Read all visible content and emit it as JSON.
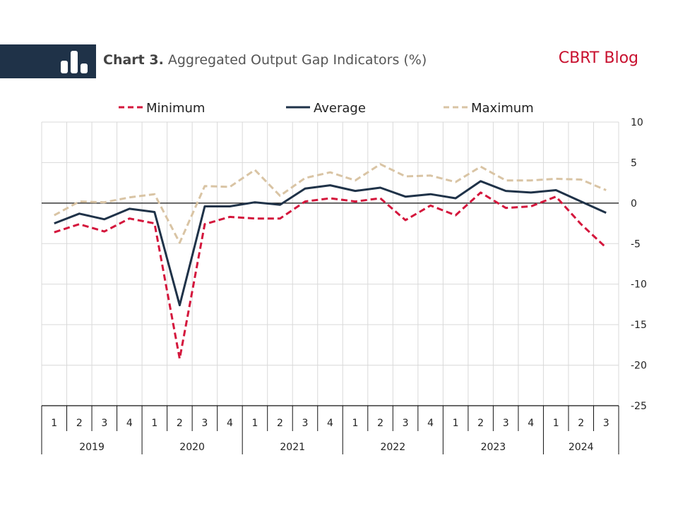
{
  "header": {
    "title_bold": "Chart 3.",
    "title_rest": "Aggregated Output Gap Indicators (%)",
    "brand": "CBRT Blog"
  },
  "colors": {
    "minimum": "#d4163c",
    "average": "#1f3248",
    "maximum": "#d9c4a4",
    "header_band": "#1f3248",
    "brand": "#c8102e"
  },
  "chart_data": {
    "type": "line",
    "title": "Chart 3. Aggregated Output Gap Indicators (%)",
    "xlabel": "",
    "ylabel": "",
    "ylim": [
      -25,
      10
    ],
    "yticks": [
      10,
      5,
      0,
      -5,
      -10,
      -15,
      -20,
      -25
    ],
    "y_axis_position": "right",
    "grid": true,
    "legend_position": "top",
    "quarters": [
      "1",
      "2",
      "3",
      "4",
      "1",
      "2",
      "3",
      "4",
      "1",
      "2",
      "3",
      "4",
      "1",
      "2",
      "3",
      "4",
      "1",
      "2",
      "3",
      "4",
      "1",
      "2",
      "3"
    ],
    "years": [
      {
        "label": "2019",
        "count": 4
      },
      {
        "label": "2020",
        "count": 4
      },
      {
        "label": "2021",
        "count": 4
      },
      {
        "label": "2022",
        "count": 4
      },
      {
        "label": "2023",
        "count": 4
      },
      {
        "label": "2024",
        "count": 3
      }
    ],
    "series": [
      {
        "name": "Minimum",
        "style": "dashed",
        "color": "#d4163c",
        "values": [
          -3.6,
          -2.6,
          -3.5,
          -1.9,
          -2.5,
          -19.2,
          -2.6,
          -1.7,
          -1.9,
          -1.9,
          0.2,
          0.6,
          0.2,
          0.6,
          -2.1,
          -0.3,
          -1.5,
          1.3,
          -0.6,
          -0.4,
          0.8,
          -2.6,
          -5.5
        ]
      },
      {
        "name": "Average",
        "style": "solid",
        "color": "#1f3248",
        "values": [
          -2.5,
          -1.3,
          -2.0,
          -0.7,
          -1.1,
          -12.6,
          -0.4,
          -0.4,
          0.1,
          -0.2,
          1.8,
          2.2,
          1.5,
          1.9,
          0.8,
          1.1,
          0.6,
          2.7,
          1.5,
          1.3,
          1.6,
          0.2,
          -1.2
        ]
      },
      {
        "name": "Maximum",
        "style": "dashed",
        "color": "#d9c4a4",
        "values": [
          -1.5,
          0.2,
          0.1,
          0.7,
          1.1,
          -4.9,
          2.1,
          2.0,
          4.1,
          0.9,
          3.1,
          3.8,
          2.8,
          4.8,
          3.3,
          3.4,
          2.6,
          4.5,
          2.8,
          2.8,
          3.0,
          2.9,
          1.6
        ]
      }
    ]
  }
}
